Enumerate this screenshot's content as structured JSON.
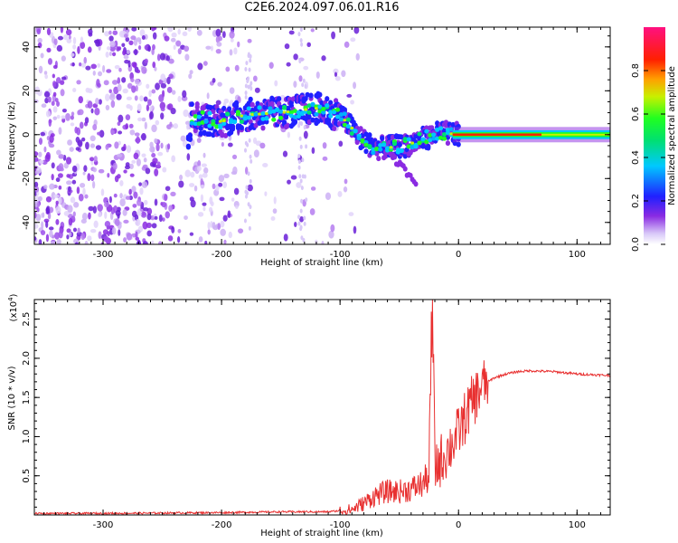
{
  "title": "C2E6.2024.097.06.01.R16",
  "colors": {
    "snr_line": "#e83030",
    "axis": "#000000"
  },
  "chart_data": [
    {
      "type": "heatmap",
      "xlabel": "Height of straight line (km)",
      "ylabel": "Frequency (Hz)",
      "xlim": [
        -358,
        128
      ],
      "ylim": [
        -50,
        49
      ],
      "xticks": [
        -300,
        -200,
        -100,
        0,
        100
      ],
      "yticks": [
        -40,
        -20,
        0,
        20,
        40
      ],
      "colorbar": {
        "label": "Normalized spectral amplitude",
        "range": [
          0,
          1
        ],
        "ticks": [
          "0.0",
          "0.2",
          "0.4",
          "0.6",
          "0.8"
        ],
        "colormap": "rainbow (white-violet-blue-cyan-green-yellow-red-magenta)"
      },
      "ridge": {
        "description": "signal frequency track",
        "points": [
          {
            "x": -225,
            "y": 8
          },
          {
            "x": -200,
            "y": 6
          },
          {
            "x": -180,
            "y": 9
          },
          {
            "x": -150,
            "y": 10
          },
          {
            "x": -120,
            "y": 12
          },
          {
            "x": -100,
            "y": 9
          },
          {
            "x": -80,
            "y": -3
          },
          {
            "x": -70,
            "y": -6
          },
          {
            "x": -60,
            "y": -6
          },
          {
            "x": -45,
            "y": -5
          },
          {
            "x": -30,
            "y": -2
          },
          {
            "x": -15,
            "y": 1
          },
          {
            "x": 0,
            "y": 0
          },
          {
            "x": 128,
            "y": 0
          }
        ]
      }
    },
    {
      "type": "line",
      "xlabel": "Height of straight line (km)",
      "ylabel": "SNR (10 * v/v)",
      "yscale_label": "(x10",
      "yscale_exponent": "4",
      "yscale_suffix": ")",
      "xlim": [
        -358,
        128
      ],
      "ylim": [
        0,
        2.75
      ],
      "xticks": [
        -300,
        -200,
        -100,
        0,
        100
      ],
      "yticks": [
        "0.5",
        "1.0",
        "1.5",
        "2.0",
        "2.5"
      ],
      "series": [
        {
          "x": [
            -358,
            -300,
            -200,
            -150,
            -110,
            -90,
            -80,
            -70,
            -60,
            -50,
            -40,
            -30,
            -25,
            -22,
            -20,
            -10,
            0,
            10,
            20,
            30,
            40,
            50,
            60,
            80,
            100,
            128
          ],
          "y": [
            0.02,
            0.02,
            0.03,
            0.04,
            0.04,
            0.07,
            0.15,
            0.25,
            0.3,
            0.3,
            0.33,
            0.4,
            0.5,
            2.75,
            0.6,
            0.8,
            1.05,
            1.4,
            1.65,
            1.75,
            1.8,
            1.83,
            1.84,
            1.83,
            1.8,
            1.78
          ]
        }
      ]
    }
  ]
}
